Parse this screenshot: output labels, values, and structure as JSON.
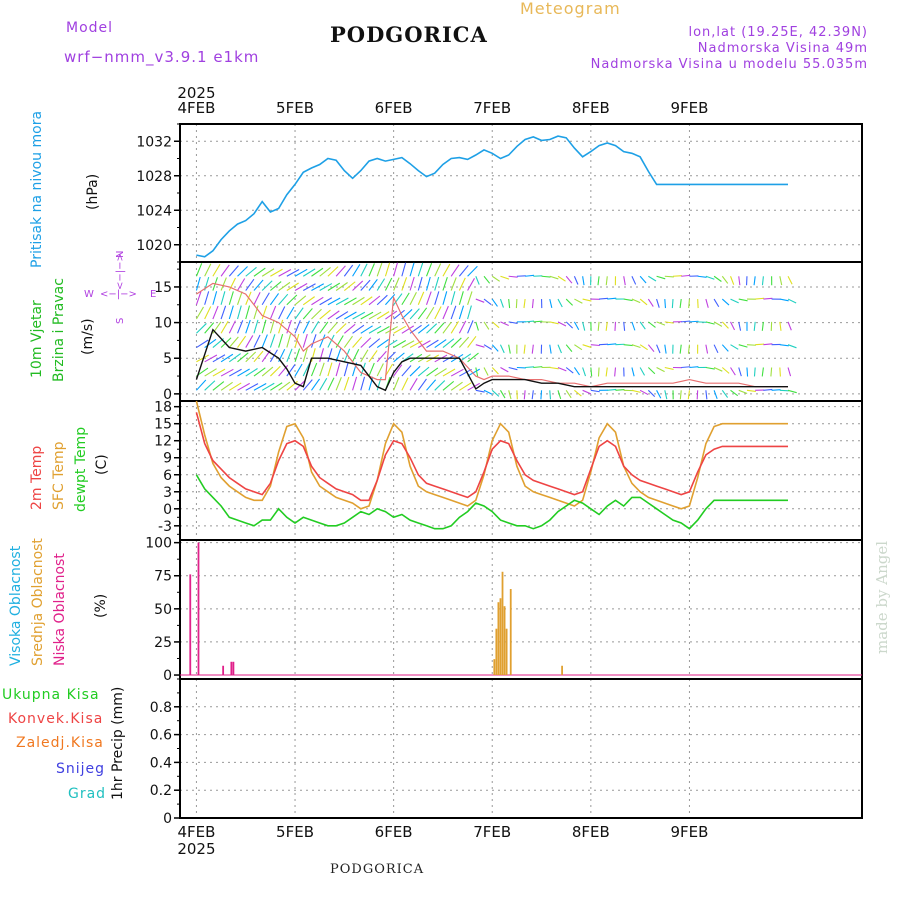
{
  "header": {
    "model_label": "Model",
    "model_name": "wrf−nmm_v3.9.1  e1km",
    "station": "PODGORICA",
    "meteogram_label": "Meteogram",
    "lonlat": "lon,lat (19.25E, 42.39N)",
    "elevation": "Nadmorska Visina 49m",
    "model_elevation": "Nadmorska Visina u modelu 55.035m"
  },
  "footer": {
    "station": "PODGORICA",
    "credit": "made by Angel"
  },
  "time_axis": {
    "year": "2025",
    "day_labels": [
      "4FEB",
      "5FEB",
      "6FEB",
      "7FEB",
      "8FEB",
      "9FEB"
    ],
    "start_hour": 0,
    "end_hour": 144
  },
  "colors": {
    "pressure": "#1ea0e6",
    "temp2m": "#ee4444",
    "sfc_temp": "#e0a030",
    "dewpt": "#22cc22",
    "high_cloud": "#20b0e0",
    "mid_cloud": "#e0a030",
    "low_cloud": "#e0208a",
    "wind_dir_label": "#b040e0",
    "grad": "#20c0c0"
  },
  "chart_data": [
    {
      "type": "line",
      "panel": "pressure",
      "ylabel_name": "Pritisak na nivou mora",
      "ylabel_unit": "(hPa)",
      "ylim": [
        1018,
        1034
      ],
      "yticks": [
        1020,
        1024,
        1028,
        1032
      ],
      "grid": true,
      "x": [
        0,
        2,
        4,
        6,
        8,
        10,
        12,
        14,
        16,
        18,
        20,
        22,
        24,
        26,
        28,
        30,
        32,
        34,
        36,
        38,
        40,
        42,
        44,
        46,
        48,
        50,
        52,
        54,
        56,
        58,
        60,
        62,
        64,
        66,
        68,
        70,
        72,
        74,
        76,
        78,
        80,
        82,
        84,
        86,
        88,
        90,
        92,
        94,
        96,
        98,
        100,
        102,
        104,
        106,
        108,
        110,
        112,
        114,
        116,
        118,
        120,
        122,
        124,
        126,
        128,
        130,
        132,
        134,
        136,
        138,
        140,
        142,
        144
      ],
      "series": [
        {
          "values": [
            1018.8,
            1018.6,
            1019.3,
            1020.6,
            1021.6,
            1022.4,
            1022.8,
            1023.6,
            1025.0,
            1023.8,
            1024.2,
            1025.8,
            1027.0,
            1028.4,
            1028.9,
            1029.3,
            1030.0,
            1029.8,
            1028.6,
            1027.7,
            1028.6,
            1029.7,
            1030.0,
            1029.7,
            1029.9,
            1030.1,
            1029.4,
            1028.6,
            1027.9,
            1028.3,
            1029.3,
            1030.0,
            1030.1,
            1029.9,
            1030.4,
            1031.0,
            1030.6,
            1030.0,
            1030.4,
            1031.4,
            1032.2,
            1032.5,
            1032.1,
            1032.2,
            1032.6,
            1032.4,
            1031.2,
            1030.2,
            1030.8,
            1031.5,
            1031.8,
            1031.5,
            1030.8,
            1030.6,
            1030.2,
            1028.5,
            1027.0,
            1027.0,
            1027.0,
            1027.0,
            1027.0,
            1027.0,
            1027.0,
            1027.0,
            1027.0,
            1027.0,
            1027.0,
            1027.0,
            1027.0,
            1027.0,
            1027.0,
            1027.0,
            1027.0
          ]
        }
      ]
    },
    {
      "type": "line",
      "panel": "wind",
      "ylabel_name": "10m Vjetar",
      "ylabel_name2": "Brzina i Pravac",
      "ylabel_unit": "(m/s)",
      "compass": {
        "n": "N",
        "w": "W",
        "e": "E",
        "s": "S",
        "left_arrow": "<−|−>",
        "right_arrow": "<−|−>"
      },
      "ylim": [
        -1,
        18.5
      ],
      "yticks": [
        0,
        5,
        10,
        15
      ],
      "grid": true,
      "x": [
        0,
        4,
        8,
        12,
        16,
        20,
        22,
        24,
        26,
        28,
        32,
        36,
        40,
        44,
        46,
        48,
        50,
        52,
        56,
        60,
        64,
        68,
        70,
        72,
        76,
        80,
        84,
        88,
        92,
        96,
        100,
        104,
        108,
        112,
        116,
        120,
        124,
        128,
        132,
        136,
        140,
        144
      ],
      "series": [
        {
          "values": [
            2.0,
            9.0,
            6.5,
            6.0,
            6.5,
            5.0,
            3.5,
            1.5,
            1.0,
            5.0,
            5.0,
            4.5,
            4.0,
            1.0,
            0.5,
            3.0,
            4.5,
            5.0,
            5.0,
            5.0,
            5.0,
            0.7,
            1.5,
            2.0,
            2.0,
            2.0,
            1.5,
            1.5,
            1.0,
            1.0,
            1.0,
            1.0,
            1.0,
            1.0,
            1.0,
            1.0,
            1.0,
            1.0,
            1.0,
            1.0,
            1.0,
            1.0
          ]
        },
        {
          "values": [
            14.0,
            15.5,
            15.0,
            14.0,
            11.0,
            10.0,
            9.0,
            8.0,
            6.0,
            7.0,
            8.0,
            6.0,
            3.0,
            2.0,
            2.0,
            13.5,
            11.0,
            9.0,
            6.0,
            6.0,
            5.0,
            2.5,
            2.0,
            2.5,
            2.5,
            2.0,
            2.0,
            1.5,
            1.5,
            1.0,
            1.5,
            1.5,
            1.5,
            1.5,
            1.5,
            2.0,
            1.5,
            1.5,
            1.5,
            1.0,
            1.0,
            1.0
          ]
        }
      ]
    },
    {
      "type": "line",
      "panel": "temperature",
      "ylabel_name": "2m Temp",
      "ylabel_name2": "SFC Temp",
      "ylabel_name3": "dewpt Temp",
      "ylabel_unit": "(C)",
      "ylim": [
        -5.5,
        19
      ],
      "yticks": [
        -3,
        0,
        3,
        6,
        9,
        12,
        15,
        18
      ],
      "grid": true,
      "x": [
        0,
        2,
        4,
        6,
        8,
        10,
        12,
        14,
        16,
        18,
        20,
        22,
        24,
        26,
        28,
        30,
        32,
        34,
        36,
        38,
        40,
        42,
        44,
        46,
        48,
        50,
        52,
        54,
        56,
        58,
        60,
        62,
        64,
        66,
        68,
        70,
        72,
        74,
        76,
        78,
        80,
        82,
        84,
        86,
        88,
        90,
        92,
        94,
        96,
        98,
        100,
        102,
        104,
        106,
        108,
        110,
        112,
        114,
        116,
        118,
        120,
        122,
        124,
        126,
        128,
        130,
        132,
        134,
        136,
        138,
        140,
        142,
        144
      ],
      "series": [
        {
          "values": [
            17.0,
            11.5,
            8.5,
            7.0,
            5.5,
            4.5,
            3.5,
            3.0,
            2.5,
            4.5,
            8.5,
            11.5,
            12.0,
            11.0,
            7.5,
            5.5,
            4.5,
            3.5,
            3.0,
            2.5,
            1.5,
            1.5,
            5.0,
            9.5,
            12.0,
            11.5,
            9.0,
            6.0,
            4.5,
            4.0,
            3.5,
            3.0,
            2.5,
            2.0,
            3.0,
            6.5,
            10.5,
            12.0,
            11.5,
            8.5,
            6.0,
            5.0,
            4.5,
            4.0,
            3.5,
            3.0,
            2.5,
            3.0,
            7.0,
            11.0,
            12.0,
            11.0,
            7.5,
            6.0,
            5.0,
            4.5,
            4.0,
            3.5,
            3.0,
            2.5,
            3.0,
            6.5,
            9.5,
            10.5,
            11.0,
            11.0,
            11.0,
            11.0,
            11.0,
            11.0,
            11.0,
            11.0,
            11.0
          ]
        },
        {
          "values": [
            19.0,
            13.0,
            8.0,
            5.5,
            4.0,
            3.0,
            2.0,
            1.5,
            1.5,
            4.0,
            10.0,
            14.5,
            15.0,
            12.5,
            6.5,
            4.0,
            3.0,
            2.0,
            1.5,
            1.0,
            0.0,
            0.5,
            5.0,
            11.5,
            15.0,
            13.5,
            7.5,
            4.0,
            3.0,
            2.5,
            2.0,
            1.5,
            1.0,
            0.5,
            1.5,
            6.0,
            12.0,
            15.0,
            13.5,
            7.5,
            4.0,
            3.0,
            2.5,
            2.0,
            1.5,
            1.0,
            0.5,
            1.5,
            6.5,
            12.5,
            15.0,
            13.5,
            7.5,
            4.5,
            3.0,
            2.0,
            1.5,
            1.0,
            0.5,
            0.0,
            0.5,
            5.5,
            11.5,
            14.5,
            15.0,
            15.0,
            15.0,
            15.0,
            15.0,
            15.0,
            15.0,
            15.0,
            15.0
          ]
        },
        {
          "values": [
            6.0,
            3.5,
            2.0,
            0.5,
            -1.5,
            -2.0,
            -2.5,
            -3.0,
            -2.0,
            -2.0,
            0.0,
            -1.5,
            -2.5,
            -1.5,
            -2.0,
            -2.5,
            -3.0,
            -3.0,
            -2.5,
            -1.5,
            -0.5,
            -1.0,
            0.0,
            -0.5,
            -1.5,
            -1.0,
            -2.0,
            -2.5,
            -3.0,
            -3.5,
            -3.5,
            -3.0,
            -1.5,
            -0.5,
            1.0,
            0.5,
            -0.5,
            -2.0,
            -2.5,
            -3.0,
            -3.0,
            -3.5,
            -3.0,
            -2.0,
            -0.5,
            0.5,
            1.5,
            1.0,
            0.0,
            -1.0,
            0.5,
            1.5,
            0.5,
            2.0,
            2.0,
            1.0,
            0.0,
            -1.0,
            -2.0,
            -2.5,
            -3.5,
            -2.0,
            0.0,
            1.5,
            1.5,
            1.5,
            1.5,
            1.5,
            1.5,
            1.5,
            1.5,
            1.5,
            1.5
          ]
        }
      ]
    },
    {
      "type": "bar",
      "panel": "cloud",
      "ylabel_name": "Visoka Oblacnost",
      "ylabel_name2": "Srednja Oblacnost",
      "ylabel_name3": "Niska Oblacnost",
      "ylabel_unit": "(%)",
      "ylim": [
        -3,
        102
      ],
      "yticks": [
        0,
        25,
        50,
        75,
        100
      ],
      "grid": true,
      "series": [
        {
          "name": "Niska Oblacnost",
          "x": [
            -1.5,
            0.5,
            6.5,
            8.5,
            9.0
          ],
          "values": [
            76,
            100,
            7,
            10,
            10
          ]
        },
        {
          "name": "Srednja Oblacnost",
          "x": [
            72.5,
            73.0,
            73.5,
            74.0,
            74.5,
            75.0,
            75.5,
            76.5,
            89.0
          ],
          "values": [
            12,
            35,
            55,
            58,
            78,
            52,
            35,
            65,
            7
          ]
        },
        {
          "name": "Visoka Oblacnost",
          "x": [],
          "values": []
        }
      ]
    },
    {
      "type": "line",
      "panel": "precip",
      "ylabel_unit": "1hr Precip (mm)",
      "legend": [
        "Ukupna Kisa",
        "Konvek.Kisa",
        "Zaledj.Kisa",
        "Snijeg",
        "Grad"
      ],
      "legend_colors": [
        "#22cc22",
        "#ee4444",
        "#f07820",
        "#4040e0",
        "#20c0c0"
      ],
      "ylim": [
        0,
        1
      ],
      "yticks": [
        0,
        0.2,
        0.4,
        0.6,
        0.8
      ],
      "grid": true,
      "series": []
    }
  ]
}
